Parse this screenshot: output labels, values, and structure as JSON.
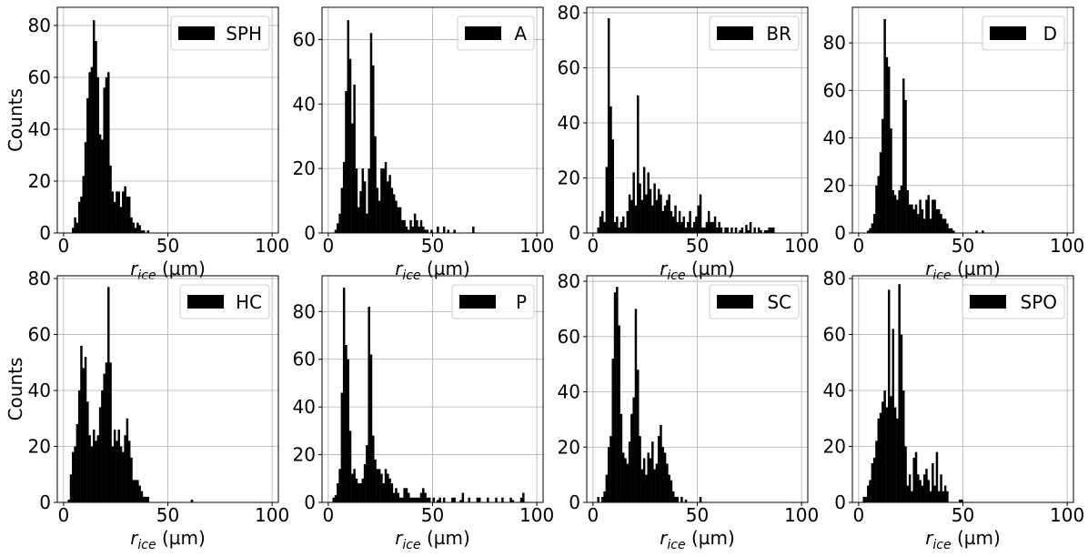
{
  "chart_data": [
    {
      "type": "bar",
      "title": "",
      "xlabel": "r_ice (µm)",
      "ylabel": "Counts",
      "xlim": [
        -3,
        103
      ],
      "ylim": [
        0,
        87
      ],
      "xticks": [
        0,
        50,
        100
      ],
      "yticks": [
        0,
        20,
        40,
        60,
        80
      ],
      "grid": true,
      "legend_position": "top-right",
      "bin_width": 1,
      "series": [
        {
          "name": "SPH",
          "color": "#000000",
          "x": [
            4,
            5,
            6,
            7,
            8,
            9,
            10,
            11,
            12,
            13,
            14,
            15,
            16,
            17,
            18,
            19,
            20,
            21,
            22,
            23,
            24,
            25,
            26,
            27,
            28,
            29,
            30,
            31,
            32,
            33,
            34,
            35,
            36,
            37,
            38,
            40
          ],
          "values": [
            2,
            6,
            4,
            12,
            14,
            22,
            35,
            52,
            62,
            64,
            82,
            74,
            60,
            38,
            36,
            56,
            60,
            62,
            26,
            16,
            12,
            16,
            16,
            10,
            16,
            18,
            14,
            14,
            6,
            4,
            2,
            4,
            3,
            1,
            1,
            1
          ]
        }
      ]
    },
    {
      "type": "bar",
      "title": "",
      "xlabel": "r_ice (µm)",
      "ylabel": "",
      "xlim": [
        -3,
        103
      ],
      "ylim": [
        0,
        70
      ],
      "xticks": [
        0,
        50,
        100
      ],
      "yticks": [
        0,
        20,
        40,
        60
      ],
      "grid": true,
      "legend_position": "top-right",
      "bin_width": 1,
      "series": [
        {
          "name": "A",
          "color": "#000000",
          "x": [
            3,
            4,
            5,
            6,
            7,
            8,
            9,
            10,
            11,
            12,
            13,
            14,
            15,
            16,
            17,
            18,
            19,
            20,
            21,
            22,
            23,
            24,
            25,
            26,
            27,
            28,
            29,
            30,
            31,
            32,
            33,
            34,
            35,
            36,
            37,
            38,
            39,
            40,
            41,
            42,
            43,
            44,
            45,
            46,
            47,
            49,
            52,
            55,
            57,
            60,
            69
          ],
          "values": [
            1,
            3,
            6,
            14,
            22,
            44,
            66,
            54,
            34,
            46,
            20,
            8,
            13,
            20,
            16,
            6,
            20,
            62,
            52,
            30,
            14,
            10,
            20,
            20,
            22,
            16,
            18,
            14,
            12,
            10,
            8,
            8,
            4,
            4,
            2,
            1,
            4,
            2,
            6,
            4,
            2,
            4,
            2,
            1,
            1,
            1,
            2,
            2,
            1,
            1,
            2
          ]
        }
      ]
    },
    {
      "type": "bar",
      "title": "",
      "xlabel": "r_ice (µm)",
      "ylabel": "",
      "xlim": [
        -3,
        103
      ],
      "ylim": [
        0,
        82
      ],
      "xticks": [
        0,
        50,
        100
      ],
      "yticks": [
        0,
        20,
        40,
        60,
        80
      ],
      "grid": true,
      "legend_position": "top-right",
      "bin_width": 1,
      "series": [
        {
          "name": "BR",
          "color": "#000000",
          "x": [
            2,
            3,
            4,
            5,
            6,
            7,
            8,
            9,
            10,
            11,
            12,
            13,
            14,
            15,
            16,
            17,
            18,
            19,
            20,
            21,
            22,
            23,
            24,
            25,
            26,
            27,
            28,
            29,
            30,
            31,
            32,
            33,
            34,
            35,
            36,
            37,
            38,
            39,
            40,
            41,
            42,
            43,
            44,
            45,
            46,
            47,
            48,
            49,
            50,
            51,
            52,
            53,
            54,
            55,
            56,
            57,
            58,
            59,
            60,
            61,
            63,
            64,
            66,
            68,
            70,
            71,
            73,
            74,
            75,
            77,
            79,
            80,
            82,
            83,
            84,
            85,
            86
          ],
          "values": [
            2,
            6,
            8,
            4,
            24,
            78,
            46,
            34,
            4,
            6,
            2,
            4,
            6,
            2,
            8,
            14,
            12,
            22,
            10,
            50,
            18,
            12,
            24,
            14,
            22,
            16,
            10,
            18,
            12,
            16,
            14,
            8,
            10,
            12,
            14,
            8,
            6,
            10,
            4,
            8,
            4,
            6,
            2,
            4,
            8,
            2,
            4,
            6,
            10,
            14,
            2,
            2,
            4,
            8,
            4,
            4,
            6,
            2,
            4,
            2,
            2,
            2,
            2,
            2,
            1,
            2,
            3,
            1,
            4,
            2,
            2,
            1,
            1,
            1,
            2,
            2,
            2
          ]
        }
      ]
    },
    {
      "type": "bar",
      "title": "",
      "xlabel": "r_ice (µm)",
      "ylabel": "",
      "xlim": [
        -3,
        103
      ],
      "ylim": [
        0,
        95
      ],
      "xticks": [
        0,
        50,
        100
      ],
      "yticks": [
        0,
        20,
        40,
        60,
        80
      ],
      "grid": true,
      "legend_position": "top-right",
      "bin_width": 1,
      "series": [
        {
          "name": "D",
          "color": "#000000",
          "x": [
            4,
            5,
            6,
            7,
            8,
            9,
            10,
            11,
            12,
            13,
            14,
            15,
            16,
            17,
            18,
            19,
            20,
            21,
            22,
            23,
            24,
            25,
            26,
            27,
            28,
            29,
            30,
            31,
            32,
            33,
            34,
            35,
            36,
            37,
            38,
            39,
            40,
            41,
            42,
            43,
            44,
            45,
            56,
            59
          ],
          "values": [
            1,
            2,
            4,
            8,
            20,
            24,
            34,
            48,
            90,
            74,
            70,
            44,
            18,
            16,
            14,
            18,
            20,
            65,
            56,
            18,
            12,
            12,
            10,
            12,
            8,
            14,
            10,
            6,
            14,
            16,
            6,
            14,
            14,
            10,
            10,
            8,
            6,
            6,
            4,
            2,
            2,
            1,
            1,
            1
          ]
        }
      ]
    },
    {
      "type": "bar",
      "title": "",
      "xlabel": "r_ice (µm)",
      "ylabel": "Counts",
      "xlim": [
        -3,
        103
      ],
      "ylim": [
        0,
        81
      ],
      "xticks": [
        0,
        50,
        100
      ],
      "yticks": [
        0,
        20,
        40,
        60,
        80
      ],
      "grid": true,
      "legend_position": "top-right",
      "bin_width": 1,
      "series": [
        {
          "name": "HC",
          "color": "#000000",
          "x": [
            2,
            3,
            4,
            5,
            6,
            7,
            8,
            9,
            10,
            11,
            12,
            13,
            14,
            15,
            16,
            17,
            18,
            19,
            20,
            21,
            22,
            23,
            24,
            25,
            26,
            27,
            28,
            29,
            30,
            31,
            32,
            33,
            34,
            35,
            36,
            37,
            38,
            39,
            40,
            61
          ],
          "values": [
            1,
            10,
            18,
            20,
            28,
            40,
            56,
            48,
            52,
            36,
            24,
            20,
            26,
            22,
            24,
            34,
            40,
            46,
            50,
            77,
            50,
            20,
            26,
            22,
            26,
            20,
            18,
            24,
            30,
            22,
            16,
            8,
            8,
            8,
            6,
            4,
            2,
            2,
            2,
            1
          ]
        }
      ]
    },
    {
      "type": "bar",
      "title": "",
      "xlabel": "r_ice (µm)",
      "ylabel": "",
      "xlim": [
        -3,
        103
      ],
      "ylim": [
        0,
        95
      ],
      "xticks": [
        0,
        50,
        100
      ],
      "yticks": [
        0,
        20,
        40,
        60,
        80
      ],
      "grid": true,
      "legend_position": "top-right",
      "bin_width": 1,
      "series": [
        {
          "name": "P",
          "color": "#000000",
          "x": [
            2,
            3,
            4,
            5,
            6,
            7,
            8,
            9,
            10,
            11,
            12,
            13,
            14,
            15,
            16,
            17,
            18,
            19,
            20,
            21,
            22,
            23,
            24,
            25,
            26,
            27,
            28,
            29,
            30,
            31,
            32,
            33,
            34,
            35,
            36,
            37,
            38,
            39,
            40,
            41,
            42,
            43,
            44,
            45,
            46,
            47,
            48,
            50,
            52,
            53,
            55,
            59,
            60,
            63,
            64,
            67,
            71,
            72,
            76,
            80,
            83,
            87,
            88,
            92,
            93
          ],
          "values": [
            2,
            3,
            8,
            14,
            46,
            90,
            66,
            60,
            30,
            12,
            14,
            10,
            8,
            8,
            10,
            16,
            24,
            82,
            62,
            28,
            18,
            14,
            14,
            12,
            8,
            14,
            12,
            10,
            8,
            4,
            6,
            4,
            2,
            2,
            6,
            6,
            4,
            2,
            2,
            2,
            2,
            2,
            4,
            6,
            4,
            2,
            2,
            2,
            1,
            2,
            2,
            2,
            2,
            1,
            4,
            2,
            2,
            2,
            2,
            2,
            2,
            2,
            1,
            2,
            4
          ]
        }
      ]
    },
    {
      "type": "bar",
      "title": "",
      "xlabel": "r_ice (µm)",
      "ylabel": "",
      "xlim": [
        -3,
        103
      ],
      "ylim": [
        0,
        82
      ],
      "xticks": [
        0,
        50,
        100
      ],
      "yticks": [
        0,
        20,
        40,
        60,
        80
      ],
      "grid": true,
      "legend_position": "top-right",
      "bin_width": 1,
      "series": [
        {
          "name": "SC",
          "color": "#000000",
          "x": [
            2,
            4,
            5,
            6,
            7,
            8,
            9,
            10,
            11,
            12,
            13,
            14,
            15,
            16,
            17,
            18,
            19,
            20,
            21,
            22,
            23,
            24,
            25,
            26,
            27,
            28,
            29,
            30,
            31,
            32,
            33,
            34,
            35,
            36,
            37,
            38,
            39,
            40,
            42,
            44,
            51
          ],
          "values": [
            2,
            2,
            4,
            10,
            20,
            24,
            52,
            76,
            78,
            64,
            32,
            18,
            16,
            14,
            22,
            32,
            38,
            70,
            48,
            24,
            12,
            16,
            10,
            18,
            16,
            22,
            12,
            14,
            24,
            28,
            20,
            18,
            14,
            10,
            8,
            4,
            2,
            2,
            2,
            1,
            2
          ]
        }
      ]
    },
    {
      "type": "bar",
      "title": "",
      "xlabel": "r_ice (µm)",
      "ylabel": "",
      "xlim": [
        -3,
        103
      ],
      "ylim": [
        0,
        81
      ],
      "xticks": [
        0,
        50,
        100
      ],
      "yticks": [
        0,
        20,
        40,
        60,
        80
      ],
      "grid": true,
      "legend_position": "top-right",
      "bin_width": 1,
      "series": [
        {
          "name": "SPO",
          "color": "#000000",
          "x": [
            2,
            3,
            4,
            5,
            6,
            7,
            8,
            9,
            10,
            11,
            12,
            13,
            14,
            15,
            16,
            17,
            18,
            19,
            20,
            21,
            22,
            23,
            24,
            25,
            26,
            27,
            28,
            29,
            30,
            31,
            32,
            33,
            34,
            35,
            36,
            37,
            38,
            39,
            40,
            41,
            42,
            48,
            49
          ],
          "values": [
            2,
            2,
            6,
            8,
            14,
            16,
            22,
            30,
            32,
            36,
            40,
            34,
            76,
            38,
            62,
            34,
            30,
            78,
            60,
            40,
            20,
            6,
            10,
            4,
            16,
            18,
            10,
            8,
            6,
            10,
            12,
            8,
            4,
            14,
            6,
            18,
            4,
            10,
            4,
            6,
            4,
            1,
            1
          ]
        }
      ]
    }
  ]
}
